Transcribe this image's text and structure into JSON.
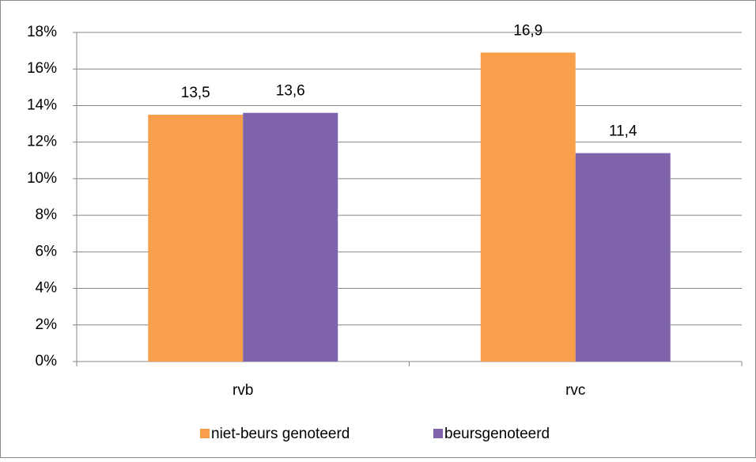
{
  "chart_data": {
    "type": "bar",
    "categories": [
      "rvb",
      "rvc"
    ],
    "series": [
      {
        "name": "niet-beurs genoteerd",
        "color": "#f79f4b",
        "values": [
          13.5,
          16.9
        ],
        "value_labels": [
          "13,5",
          "16,9"
        ]
      },
      {
        "name": "beursgenoteerd",
        "color": "#8064ab",
        "values": [
          13.6,
          11.4
        ],
        "value_labels": [
          "13,6",
          "11,4"
        ]
      }
    ],
    "ylim": [
      0,
      18
    ],
    "yticks": [
      {
        "value": 0,
        "label": "0%"
      },
      {
        "value": 2,
        "label": "2%"
      },
      {
        "value": 4,
        "label": "4%"
      },
      {
        "value": 6,
        "label": "6%"
      },
      {
        "value": 8,
        "label": "8%"
      },
      {
        "value": 10,
        "label": "10%"
      },
      {
        "value": 12,
        "label": "12%"
      },
      {
        "value": 14,
        "label": "14%"
      },
      {
        "value": 16,
        "label": "16%"
      },
      {
        "value": 18,
        "label": "18%"
      }
    ],
    "grid": true,
    "legend": "bottom"
  }
}
